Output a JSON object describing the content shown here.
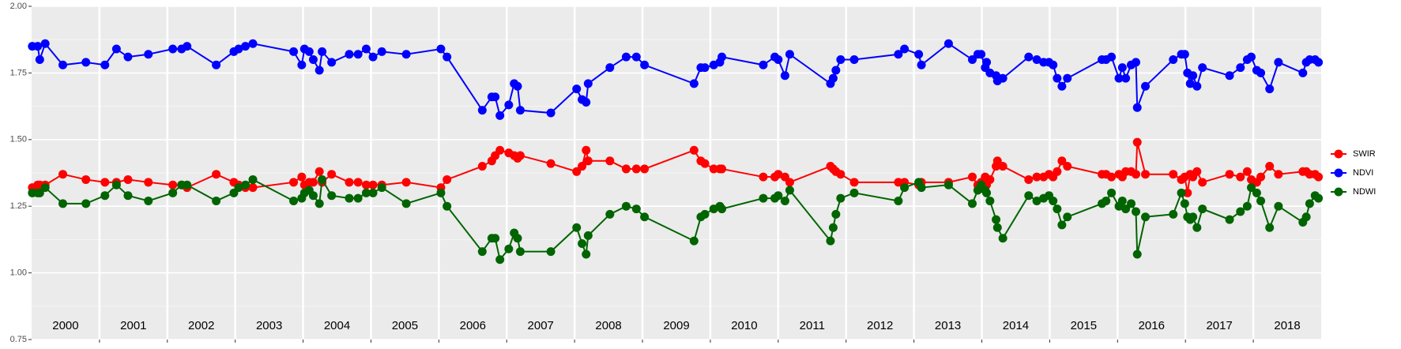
{
  "chart_data": {
    "type": "line",
    "x": [
      2000.01,
      2000.09,
      2000.12,
      2000.2,
      2000.46,
      2000.8,
      2001.08,
      2001.25,
      2001.42,
      2001.72,
      2002.08,
      2002.21,
      2002.29,
      2002.72,
      2002.98,
      2003.05,
      2003.15,
      2003.26,
      2003.86,
      2003.98,
      2004.02,
      2004.09,
      2004.15,
      2004.24,
      2004.28,
      2004.42,
      2004.68,
      2004.81,
      2004.93,
      2005.03,
      2005.16,
      2005.52,
      2006.03,
      2006.12,
      2006.64,
      2006.78,
      2006.83,
      2006.9,
      2007.03,
      2007.11,
      2007.16,
      2007.2,
      2007.65,
      2008.03,
      2008.11,
      2008.17,
      2008.2,
      2008.52,
      2008.76,
      2008.91,
      2009.03,
      2009.76,
      2009.86,
      2009.92,
      2010.05,
      2010.14,
      2010.17,
      2010.78,
      2010.95,
      2011.0,
      2011.1,
      2011.17,
      2011.77,
      2011.81,
      2011.85,
      2011.92,
      2012.12,
      2012.77,
      2012.86,
      2013.07,
      2013.11,
      2013.51,
      2013.86,
      2013.94,
      2013.99,
      2014.05,
      2014.07,
      2014.12,
      2014.21,
      2014.23,
      2014.31,
      2014.69,
      2014.81,
      2014.91,
      2014.99,
      2015.05,
      2015.11,
      2015.18,
      2015.26,
      2015.77,
      2015.83,
      2015.91,
      2016.02,
      2016.07,
      2016.12,
      2016.2,
      2016.27,
      2016.29,
      2016.41,
      2016.82,
      2016.94,
      2016.99,
      2017.03,
      2017.07,
      2017.11,
      2017.17,
      2017.25,
      2017.65,
      2017.81,
      2017.91,
      2017.97,
      2018.05,
      2018.11,
      2018.24,
      2018.37,
      2018.73,
      2018.78,
      2018.83,
      2018.91,
      2018.96
    ],
    "series": [
      {
        "name": "SWIR",
        "color": "#ff0000",
        "values": [
          1.32,
          1.33,
          1.33,
          1.33,
          1.37,
          1.35,
          1.34,
          1.34,
          1.35,
          1.34,
          1.33,
          1.33,
          1.32,
          1.37,
          1.34,
          1.33,
          1.32,
          1.32,
          1.34,
          1.36,
          1.33,
          1.34,
          1.34,
          1.38,
          1.34,
          1.37,
          1.34,
          1.34,
          1.33,
          1.33,
          1.33,
          1.34,
          1.32,
          1.35,
          1.4,
          1.42,
          1.44,
          1.46,
          1.45,
          1.44,
          1.43,
          1.44,
          1.41,
          1.38,
          1.4,
          1.46,
          1.42,
          1.42,
          1.39,
          1.39,
          1.39,
          1.46,
          1.42,
          1.41,
          1.39,
          1.39,
          1.39,
          1.36,
          1.36,
          1.37,
          1.36,
          1.34,
          1.4,
          1.39,
          1.38,
          1.37,
          1.34,
          1.34,
          1.34,
          1.33,
          1.34,
          1.34,
          1.36,
          1.33,
          1.34,
          1.36,
          1.33,
          1.35,
          1.4,
          1.42,
          1.4,
          1.35,
          1.36,
          1.36,
          1.37,
          1.36,
          1.38,
          1.42,
          1.4,
          1.37,
          1.37,
          1.36,
          1.37,
          1.36,
          1.38,
          1.38,
          1.37,
          1.49,
          1.37,
          1.37,
          1.35,
          1.36,
          1.3,
          1.37,
          1.36,
          1.38,
          1.34,
          1.37,
          1.36,
          1.38,
          1.35,
          1.34,
          1.36,
          1.4,
          1.37,
          1.38,
          1.38,
          1.37,
          1.37,
          1.36
        ]
      },
      {
        "name": "NDVI",
        "color": "#0000ff",
        "values": [
          1.85,
          1.85,
          1.8,
          1.86,
          1.78,
          1.79,
          1.78,
          1.84,
          1.81,
          1.82,
          1.84,
          1.84,
          1.85,
          1.78,
          1.83,
          1.84,
          1.85,
          1.86,
          1.83,
          1.78,
          1.84,
          1.83,
          1.8,
          1.76,
          1.83,
          1.79,
          1.82,
          1.82,
          1.84,
          1.81,
          1.83,
          1.82,
          1.84,
          1.81,
          1.61,
          1.66,
          1.66,
          1.59,
          1.63,
          1.71,
          1.7,
          1.61,
          1.6,
          1.69,
          1.65,
          1.64,
          1.71,
          1.77,
          1.81,
          1.81,
          1.78,
          1.71,
          1.77,
          1.77,
          1.78,
          1.79,
          1.81,
          1.78,
          1.81,
          1.8,
          1.74,
          1.82,
          1.71,
          1.73,
          1.76,
          1.8,
          1.8,
          1.82,
          1.84,
          1.82,
          1.78,
          1.86,
          1.8,
          1.82,
          1.82,
          1.77,
          1.79,
          1.75,
          1.74,
          1.72,
          1.73,
          1.81,
          1.8,
          1.79,
          1.79,
          1.78,
          1.73,
          1.7,
          1.73,
          1.8,
          1.8,
          1.81,
          1.73,
          1.77,
          1.73,
          1.78,
          1.79,
          1.62,
          1.7,
          1.8,
          1.82,
          1.82,
          1.75,
          1.71,
          1.74,
          1.7,
          1.77,
          1.74,
          1.77,
          1.8,
          1.81,
          1.76,
          1.75,
          1.69,
          1.79,
          1.75,
          1.79,
          1.8,
          1.8,
          1.79
        ]
      },
      {
        "name": "NDWI",
        "color": "#006400",
        "values": [
          1.3,
          1.3,
          1.3,
          1.32,
          1.26,
          1.26,
          1.29,
          1.33,
          1.29,
          1.27,
          1.3,
          1.33,
          1.33,
          1.27,
          1.3,
          1.32,
          1.33,
          1.35,
          1.27,
          1.28,
          1.3,
          1.31,
          1.29,
          1.26,
          1.35,
          1.29,
          1.28,
          1.28,
          1.3,
          1.3,
          1.32,
          1.26,
          1.3,
          1.25,
          1.08,
          1.13,
          1.13,
          1.05,
          1.09,
          1.15,
          1.13,
          1.08,
          1.08,
          1.17,
          1.11,
          1.07,
          1.14,
          1.22,
          1.25,
          1.24,
          1.21,
          1.12,
          1.21,
          1.22,
          1.24,
          1.25,
          1.24,
          1.28,
          1.28,
          1.29,
          1.27,
          1.31,
          1.12,
          1.17,
          1.22,
          1.28,
          1.3,
          1.27,
          1.32,
          1.34,
          1.32,
          1.33,
          1.26,
          1.31,
          1.33,
          1.31,
          1.3,
          1.27,
          1.2,
          1.17,
          1.13,
          1.29,
          1.27,
          1.28,
          1.29,
          1.27,
          1.24,
          1.18,
          1.21,
          1.26,
          1.27,
          1.3,
          1.25,
          1.27,
          1.24,
          1.26,
          1.23,
          1.07,
          1.21,
          1.22,
          1.3,
          1.26,
          1.21,
          1.2,
          1.21,
          1.17,
          1.24,
          1.2,
          1.23,
          1.25,
          1.32,
          1.3,
          1.27,
          1.17,
          1.25,
          1.19,
          1.21,
          1.26,
          1.29,
          1.28
        ]
      }
    ],
    "xlim": [
      2000,
      2019
    ],
    "xticks": [
      {
        "value": 2000.5,
        "label": "2000"
      },
      {
        "value": 2001.5,
        "label": "2001"
      },
      {
        "value": 2002.5,
        "label": "2002"
      },
      {
        "value": 2003.5,
        "label": "2003"
      },
      {
        "value": 2004.5,
        "label": "2004"
      },
      {
        "value": 2005.5,
        "label": "2005"
      },
      {
        "value": 2006.5,
        "label": "2006"
      },
      {
        "value": 2007.5,
        "label": "2007"
      },
      {
        "value": 2008.5,
        "label": "2008"
      },
      {
        "value": 2009.5,
        "label": "2009"
      },
      {
        "value": 2010.5,
        "label": "2010"
      },
      {
        "value": 2011.5,
        "label": "2011"
      },
      {
        "value": 2012.5,
        "label": "2012"
      },
      {
        "value": 2013.5,
        "label": "2013"
      },
      {
        "value": 2014.5,
        "label": "2014"
      },
      {
        "value": 2015.5,
        "label": "2015"
      },
      {
        "value": 2016.5,
        "label": "2016"
      },
      {
        "value": 2017.5,
        "label": "2017"
      },
      {
        "value": 2018.5,
        "label": "2018"
      }
    ],
    "xgrid": [
      2001,
      2002,
      2003,
      2004,
      2005,
      2006,
      2007,
      2008,
      2009,
      2010,
      2011,
      2012,
      2013,
      2014,
      2015,
      2016,
      2017,
      2018
    ],
    "ylim": [
      0.75,
      2
    ],
    "yticks": [
      0.75,
      {
        "value": 1,
        "label": "1.00"
      },
      1.25,
      {
        "value": 1.5,
        "label": "1.50"
      },
      1.75,
      {
        "value": 2,
        "label": "2.00"
      }
    ],
    "grid": true,
    "legend": "right"
  }
}
